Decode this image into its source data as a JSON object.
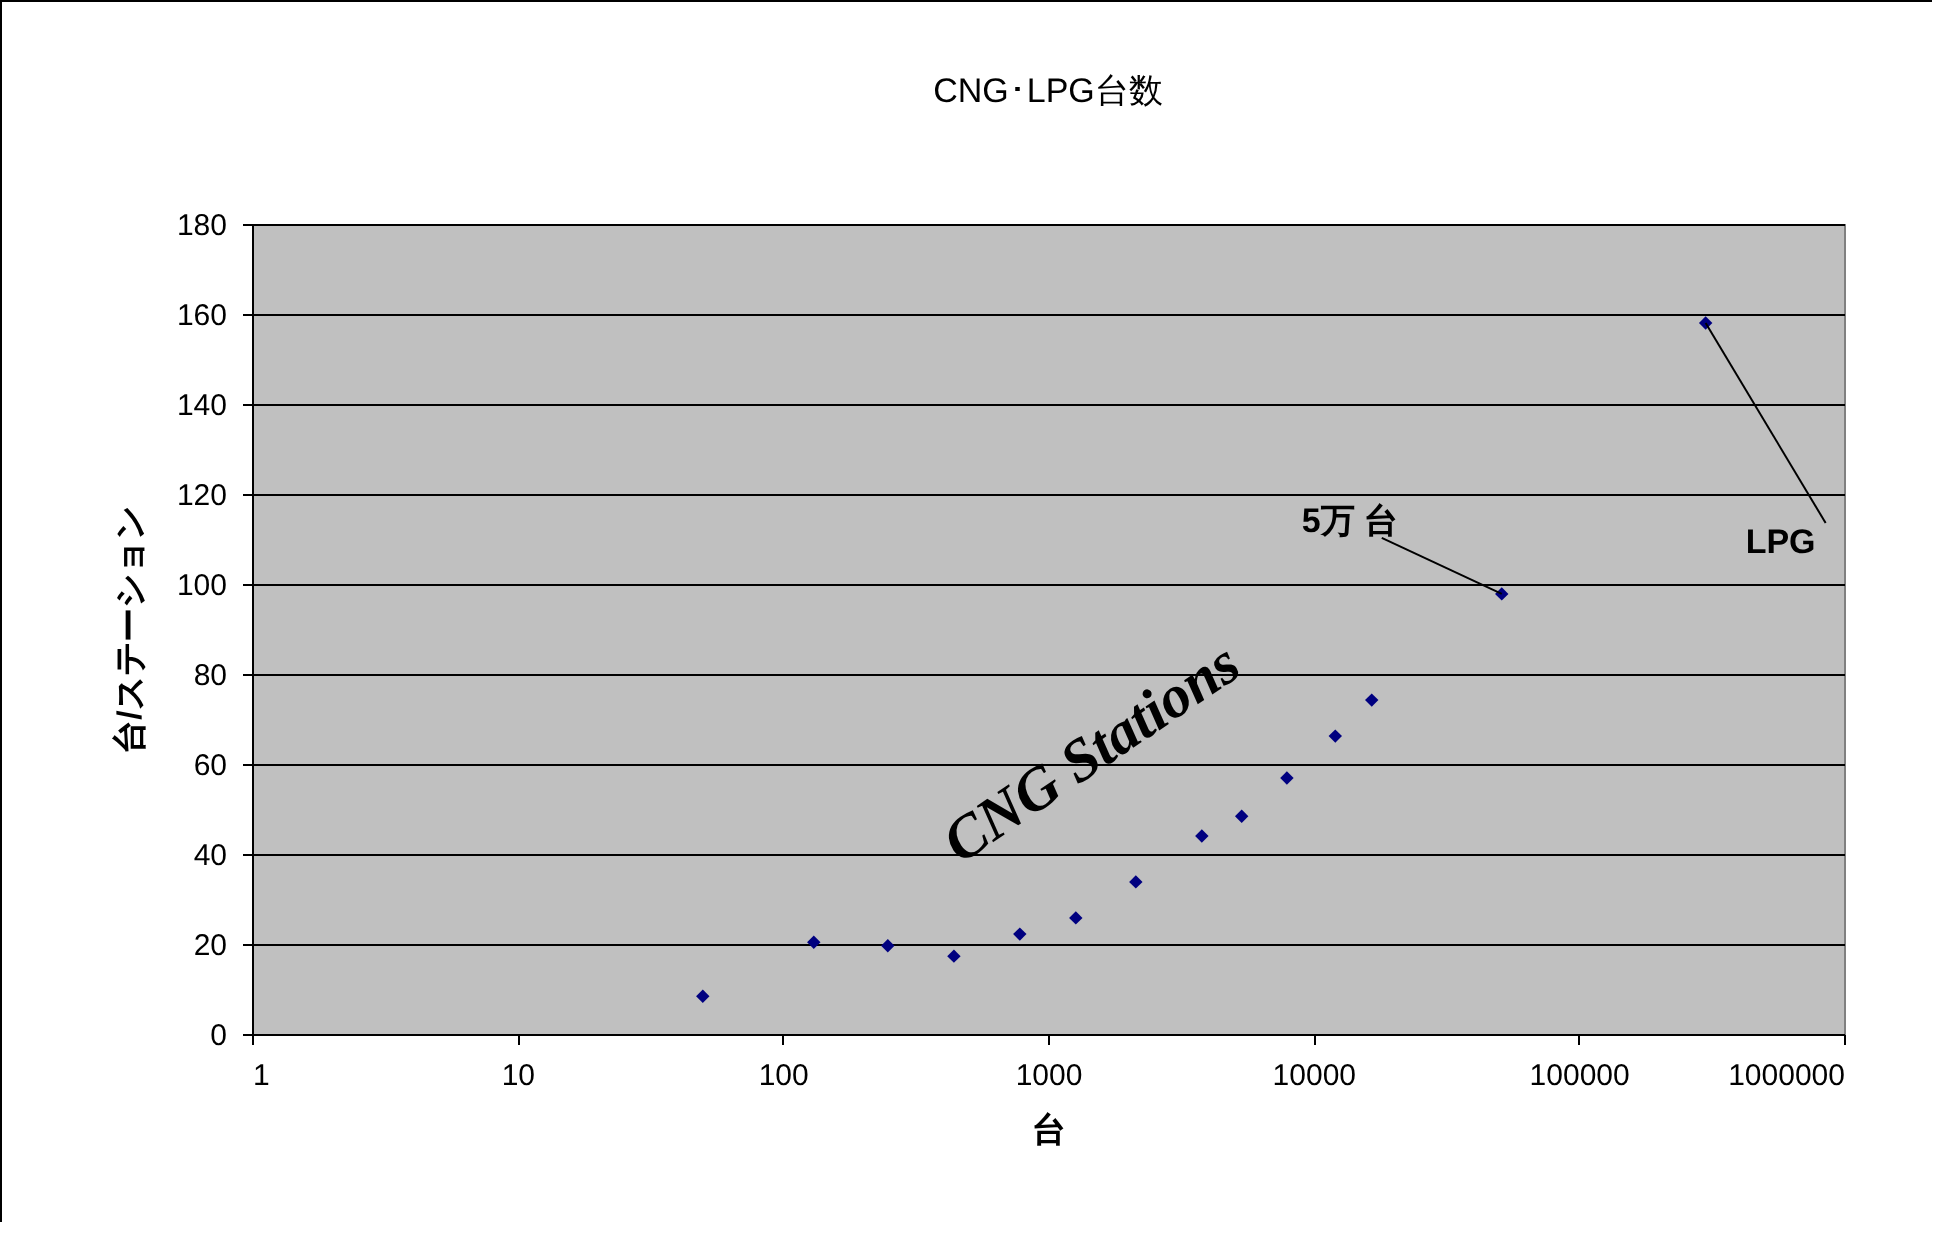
{
  "chart_data": {
    "type": "scatter",
    "title": "CNG･LPG台数",
    "xlabel": "台",
    "ylabel": "台/ステーション",
    "x": [
      50,
      131,
      249,
      442,
      783,
      1273,
      2143,
      3800,
      5370,
      7950,
      12100,
      16600,
      51300,
      301000
    ],
    "series": [
      {
        "color": "#000080",
        "values": [
          8.4,
          20.4,
          19.6,
          17.3,
          22.2,
          25.8,
          33.8,
          44,
          48.4,
          56.9,
          66.2,
          74.2,
          97.8,
          158
        ]
      }
    ],
    "xlim": [
      1,
      1000000
    ],
    "xticks": [
      1,
      10,
      100,
      1000,
      10000,
      100000,
      1000000
    ],
    "ylim": [
      0,
      180
    ],
    "yticks": [
      0,
      20,
      40,
      60,
      80,
      100,
      120,
      140,
      160,
      180
    ],
    "log": "x",
    "grid": "y",
    "legend": false,
    "marker": "diamond",
    "annotations": [
      {
        "text": "5万 台",
        "x": 51300,
        "y": 97.8
      },
      {
        "text": "LPG",
        "x": 301000,
        "y": 158
      },
      "CNG Stations"
    ]
  }
}
